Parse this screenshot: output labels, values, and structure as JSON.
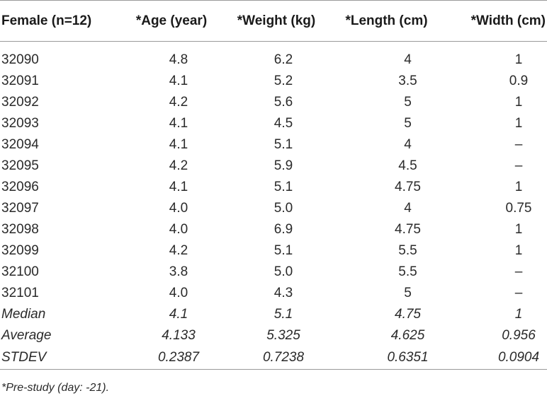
{
  "table": {
    "headers": [
      "Female (n=12)",
      "*Age (year)",
      "*Weight (kg)",
      "*Length (cm)",
      "*Width (cm)"
    ],
    "rows": [
      [
        "32090",
        "4.8",
        "6.2",
        "4",
        "1"
      ],
      [
        "32091",
        "4.1",
        "5.2",
        "3.5",
        "0.9"
      ],
      [
        "32092",
        "4.2",
        "5.6",
        "5",
        "1"
      ],
      [
        "32093",
        "4.1",
        "4.5",
        "5",
        "1"
      ],
      [
        "32094",
        "4.1",
        "5.1",
        "4",
        "–"
      ],
      [
        "32095",
        "4.2",
        "5.9",
        "4.5",
        "–"
      ],
      [
        "32096",
        "4.1",
        "5.1",
        "4.75",
        "1"
      ],
      [
        "32097",
        "4.0",
        "5.0",
        "4",
        "0.75"
      ],
      [
        "32098",
        "4.0",
        "6.9",
        "4.75",
        "1"
      ],
      [
        "32099",
        "4.2",
        "5.1",
        "5.5",
        "1"
      ],
      [
        "32100",
        "3.8",
        "5.0",
        "5.5",
        "–"
      ],
      [
        "32101",
        "4.0",
        "4.3",
        "5",
        "–"
      ]
    ],
    "stats": [
      [
        "Median",
        "4.1",
        "5.1",
        "4.75",
        "1"
      ],
      [
        "Average",
        "4.133",
        "5.325",
        "4.625",
        "0.956"
      ],
      [
        "STDEV",
        "0.2387",
        "0.7238",
        "0.6351",
        "0.0904"
      ]
    ]
  },
  "footnote": "*Pre-study (day: -21)."
}
